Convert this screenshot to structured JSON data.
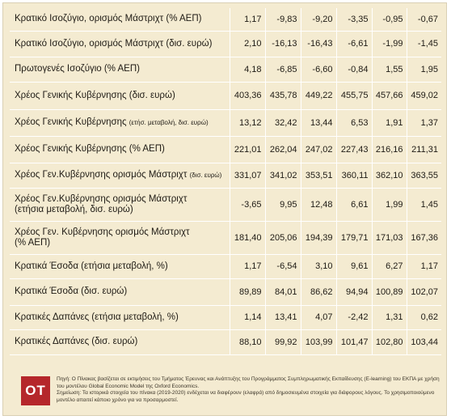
{
  "table": {
    "rows": [
      {
        "label": "Κρατικό Ισοζύγιο, ορισμός Μάστριχτ (% ΑΕΠ)",
        "values": [
          "1,17",
          "-9,83",
          "-9,20",
          "-3,35",
          "-0,95",
          "-0,67"
        ]
      },
      {
        "label": "Κρατικό Ισοζύγιο, ορισμός Μάστριχτ (δισ. ευρώ)",
        "values": [
          "2,10",
          "-16,13",
          "-16,43",
          "-6,61",
          "-1,99",
          "-1,45"
        ]
      },
      {
        "label": "Πρωτογενές Ισοζύγιο (% ΑΕΠ)",
        "values": [
          "4,18",
          "-6,85",
          "-6,60",
          "-0,84",
          "1,55",
          "1,95"
        ]
      },
      {
        "label": "Χρέος Γενικής Κυβέρνησης (δισ. ευρώ)",
        "values": [
          "403,36",
          "435,78",
          "449,22",
          "455,75",
          "457,66",
          "459,02"
        ]
      },
      {
        "label": "Χρέος Γενικής Κυβέρνησης",
        "label_small": "(ετήσ. μεταβολή, δισ. ευρώ)",
        "values": [
          "13,12",
          "32,42",
          "13,44",
          "6,53",
          "1,91",
          "1,37"
        ]
      },
      {
        "label": "Χρέος Γενικής Κυβέρνησης (% ΑΕΠ)",
        "values": [
          "221,01",
          "262,04",
          "247,02",
          "227,43",
          "216,16",
          "211,31"
        ]
      },
      {
        "label": "Χρέος Γεν.Κυβέρνησης ορισμός Μάστριχτ",
        "label_small": "(δισ. ευρώ)",
        "values": [
          "331,07",
          "341,02",
          "353,51",
          "360,11",
          "362,10",
          "363,55"
        ]
      },
      {
        "label": "Χρέος Γεν.Κυβέρνησης ορισμός Μάστριχτ",
        "label2": "(ετήσια μεταβολή, δισ. ευρώ)",
        "values": [
          "-3,65",
          "9,95",
          "12,48",
          "6,61",
          "1,99",
          "1,45"
        ]
      },
      {
        "label": "Χρέος Γεν. Κυβέρνησης ορισμός Μάστριχτ",
        "label2": "(% ΑΕΠ)",
        "values": [
          "181,40",
          "205,06",
          "194,39",
          "179,71",
          "171,03",
          "167,36"
        ]
      },
      {
        "label": "Κρατικά Έσοδα (ετήσια μεταβολή, %)",
        "values": [
          "1,17",
          "-6,54",
          "3,10",
          "9,61",
          "6,27",
          "1,17"
        ]
      },
      {
        "label": "Κρατικά Έσοδα (δισ. ευρώ)",
        "values": [
          "89,89",
          "84,01",
          "86,62",
          "94,94",
          "100,89",
          "102,07"
        ]
      },
      {
        "label": "Κρατικές Δαπάνες (ετήσια μεταβολή, %)",
        "values": [
          "1,14",
          "13,41",
          "4,07",
          "-2,42",
          "1,31",
          "0,62"
        ]
      },
      {
        "label": "Κρατικές Δαπάνες (δισ. ευρώ)",
        "values": [
          "88,10",
          "99,92",
          "103,99",
          "101,47",
          "102,80",
          "103,44"
        ]
      }
    ]
  },
  "footer": {
    "logo": "ΟΤ",
    "source": "Πηγή: Ο Πίνακας βασίζεται σε εκτιμήσεις του Τμήματος Έρευνας και Ανάπτυξης του Προγράμματος Συμπληρωματικής Εκπαίδευσης (E-learning) του ΕΚΠΑ με χρήση του μοντέλου Global Economic Model της Oxford Economics.",
    "note": "Σημείωση: Τα ιστορικά στοιχεία του πίνακα (2019-2020) ενδέχεται να διαφέρουν (ελαφρά) από δημοσιευμένα στοιχεία για διάφορους λόγους. Το χρησιμοποιούμενο μοντέλο απαιτεί κάποιο χρόνο για να προσαρμοστεί."
  },
  "colors": {
    "background": "#f4ebd1",
    "logo": "#b5272b"
  }
}
